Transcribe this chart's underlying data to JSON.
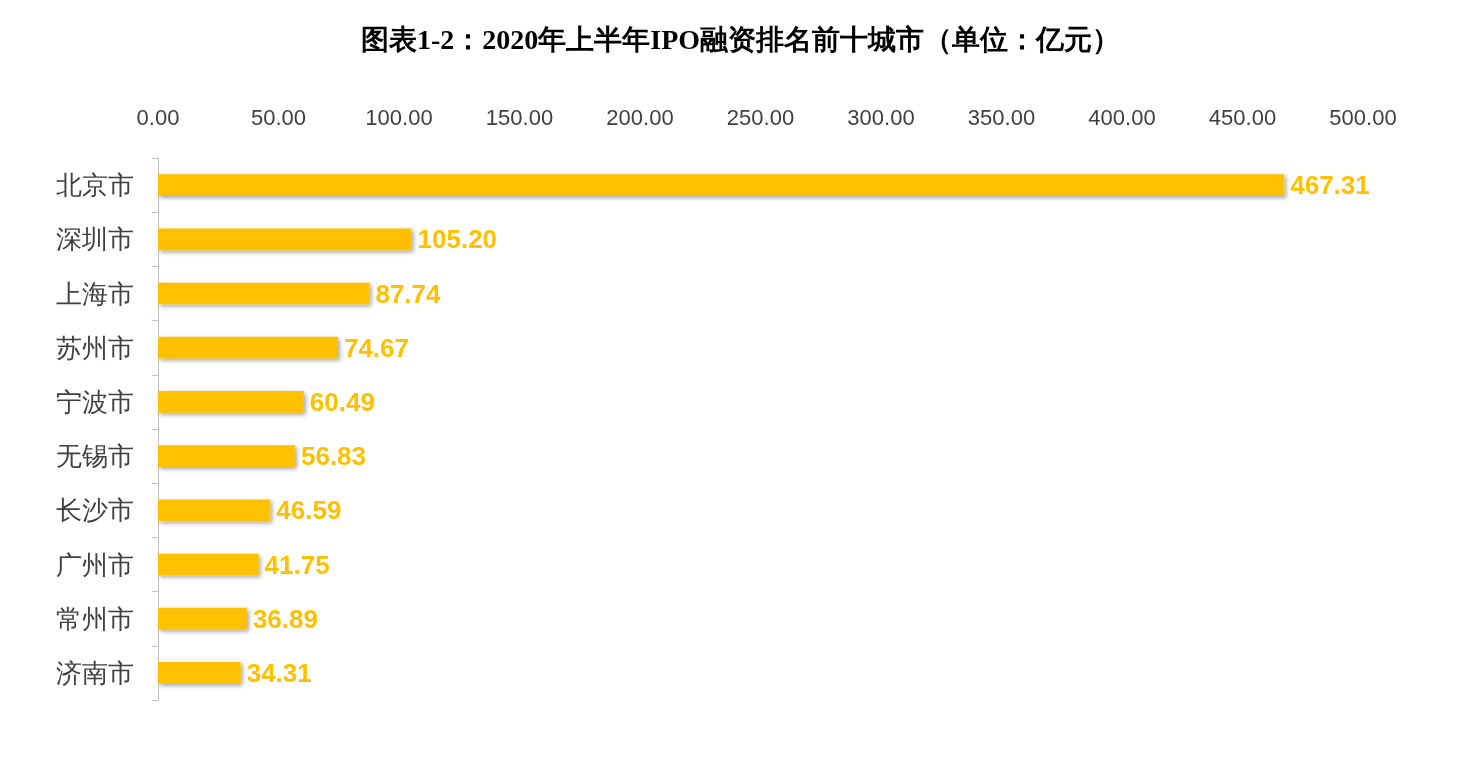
{
  "chart_data": {
    "type": "bar",
    "orientation": "horizontal",
    "title": "图表1-2：2020年上半年IPO融资排名前十城市（单位：亿元）",
    "categories": [
      "北京市",
      "深圳市",
      "上海市",
      "苏州市",
      "宁波市",
      "无锡市",
      "长沙市",
      "广州市",
      "常州市",
      "济南市"
    ],
    "values": [
      467.31,
      105.2,
      87.74,
      74.67,
      60.49,
      56.83,
      46.59,
      41.75,
      36.89,
      34.31
    ],
    "value_labels": [
      "467.31",
      "105.20",
      "87.74",
      "74.67",
      "60.49",
      "56.83",
      "46.59",
      "41.75",
      "36.89",
      "34.31"
    ],
    "color": "#ffc000",
    "xlim": [
      0,
      500
    ],
    "xticks": [
      {
        "value": 0,
        "label": "0.00"
      },
      {
        "value": 50,
        "label": "50.00"
      },
      {
        "value": 100,
        "label": "100.00"
      },
      {
        "value": 150,
        "label": "150.00"
      },
      {
        "value": 200,
        "label": "200.00"
      },
      {
        "value": 250,
        "label": "250.00"
      },
      {
        "value": 300,
        "label": "300.00"
      },
      {
        "value": 350,
        "label": "350.00"
      },
      {
        "value": 400,
        "label": "400.00"
      },
      {
        "value": 450,
        "label": "450.00"
      },
      {
        "value": 500,
        "label": "500.00"
      }
    ],
    "grid": false
  }
}
